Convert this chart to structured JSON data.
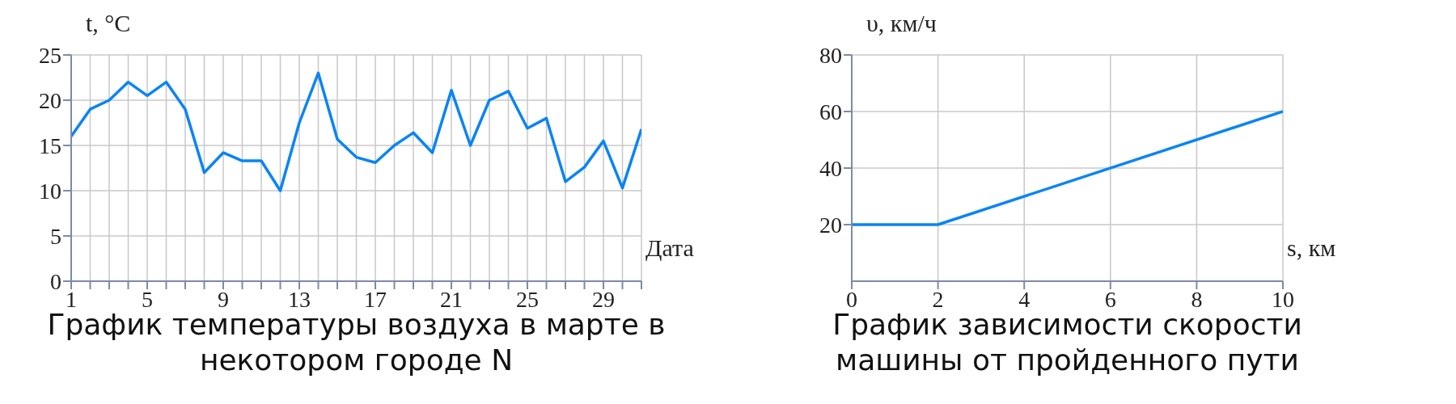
{
  "chart_data": [
    {
      "type": "line",
      "title": "График температуры воздуха в марте в некотором городе N",
      "xlabel": "Дата",
      "ylabel": "t, °C",
      "x": [
        1,
        2,
        3,
        4,
        5,
        6,
        7,
        8,
        9,
        10,
        11,
        12,
        13,
        14,
        15,
        16,
        17,
        18,
        19,
        20,
        21,
        22,
        23,
        24,
        25,
        26,
        27,
        28,
        29,
        30,
        31
      ],
      "series": [
        {
          "color": "#0a84f5",
          "values": [
            16,
            19,
            20,
            22,
            20.5,
            22,
            19,
            12,
            14.2,
            13.3,
            13.3,
            10,
            17.5,
            23,
            15.7,
            13.7,
            13.1,
            15,
            16.4,
            14.2,
            21.1,
            15,
            20,
            21,
            16.9,
            18,
            11,
            12.6,
            15.5,
            10.3,
            16.8
          ]
        }
      ],
      "xlim": [
        1,
        31
      ],
      "xticks": [
        1,
        {
          "value": 2,
          "label": null
        },
        {
          "value": 3,
          "label": null
        },
        {
          "value": 4,
          "label": null
        },
        5,
        {
          "value": 6,
          "label": null
        },
        {
          "value": 7,
          "label": null
        },
        {
          "value": 8,
          "label": null
        },
        9,
        {
          "value": 10,
          "label": null
        },
        {
          "value": 11,
          "label": null
        },
        {
          "value": 12,
          "label": null
        },
        13,
        {
          "value": 14,
          "label": null
        },
        {
          "value": 15,
          "label": null
        },
        {
          "value": 16,
          "label": null
        },
        17,
        {
          "value": 18,
          "label": null
        },
        {
          "value": 19,
          "label": null
        },
        {
          "value": 20,
          "label": null
        },
        21,
        {
          "value": 22,
          "label": null
        },
        {
          "value": 23,
          "label": null
        },
        {
          "value": 24,
          "label": null
        },
        25,
        {
          "value": 26,
          "label": null
        },
        {
          "value": 27,
          "label": null
        },
        {
          "value": 28,
          "label": null
        },
        29,
        {
          "value": 30,
          "label": null
        },
        {
          "value": 31,
          "label": null
        }
      ],
      "ylim": [
        0,
        25
      ],
      "yticks": [
        0,
        5,
        10,
        15,
        20,
        25
      ],
      "grid": true,
      "marker": "none",
      "line_style": "solid"
    },
    {
      "type": "line",
      "title": "График зависимости скорости машины от пройденного пути",
      "xlabel": "s, км",
      "ylabel": "υ, км/ч",
      "x": [
        0,
        2,
        10
      ],
      "series": [
        {
          "color": "#0a84f5",
          "values": [
            20,
            20,
            60
          ]
        }
      ],
      "xlim": [
        0,
        10
      ],
      "xticks": [
        0,
        2,
        4,
        6,
        8,
        10
      ],
      "ylim": [
        0,
        80
      ],
      "yticks": [
        20,
        40,
        60,
        80
      ],
      "grid": true,
      "marker": "none",
      "line_style": "solid"
    }
  ]
}
